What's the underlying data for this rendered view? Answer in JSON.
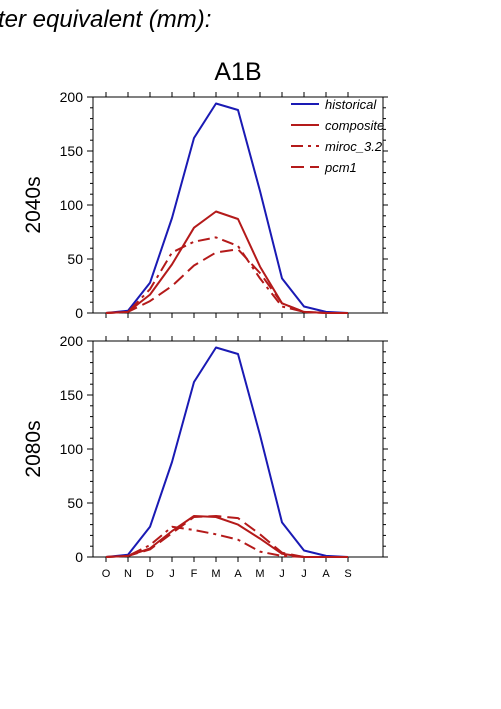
{
  "page": {
    "header": "ter equivalent (mm):",
    "scenario": "A1B"
  },
  "chart_data": [
    {
      "type": "line",
      "panel": "2040s",
      "ylabel": "2040s",
      "categories": [
        "O",
        "N",
        "D",
        "J",
        "F",
        "M",
        "A",
        "M",
        "J",
        "J",
        "A",
        "S"
      ],
      "ylim": [
        0,
        200
      ],
      "yticks": [
        0,
        50,
        100,
        150,
        200
      ],
      "legend": "top-right",
      "series": [
        {
          "name": "historical",
          "color": "#1a1ab4",
          "dash": "solid",
          "values": [
            0,
            2,
            28,
            88,
            162,
            194,
            188,
            113,
            32,
            6,
            1,
            0
          ]
        },
        {
          "name": "composite",
          "color": "#b41a1a",
          "dash": "solid",
          "values": [
            0,
            1,
            17,
            45,
            79,
            94,
            87,
            43,
            9,
            1,
            0,
            0
          ]
        },
        {
          "name": "miroc_3.2",
          "color": "#b41a1a",
          "dash": "dashdot",
          "values": [
            0,
            1,
            22,
            56,
            66,
            70,
            62,
            32,
            6,
            1,
            0,
            0
          ]
        },
        {
          "name": "pcm1",
          "color": "#b41a1a",
          "dash": "dash",
          "values": [
            0,
            1,
            11,
            25,
            44,
            56,
            59,
            37,
            9,
            1,
            0,
            0
          ]
        }
      ]
    },
    {
      "type": "line",
      "panel": "2080s",
      "ylabel": "2080s",
      "categories": [
        "O",
        "N",
        "D",
        "J",
        "F",
        "M",
        "A",
        "M",
        "J",
        "J",
        "A",
        "S"
      ],
      "ylim": [
        0,
        200
      ],
      "yticks": [
        0,
        50,
        100,
        150,
        200
      ],
      "series": [
        {
          "name": "historical",
          "color": "#1a1ab4",
          "dash": "solid",
          "values": [
            0,
            2,
            28,
            88,
            162,
            194,
            188,
            113,
            32,
            6,
            1,
            0
          ]
        },
        {
          "name": "composite",
          "color": "#b41a1a",
          "dash": "solid",
          "values": [
            0,
            1,
            8,
            24,
            38,
            37,
            30,
            17,
            3,
            0,
            0,
            0
          ]
        },
        {
          "name": "miroc_3.2",
          "color": "#b41a1a",
          "dash": "dashdot",
          "values": [
            0,
            1,
            11,
            28,
            25,
            21,
            16,
            5,
            1,
            0,
            0,
            0
          ]
        },
        {
          "name": "pcm1",
          "color": "#b41a1a",
          "dash": "dash",
          "values": [
            0,
            1,
            7,
            22,
            37,
            38,
            36,
            21,
            4,
            0,
            0,
            0
          ]
        }
      ]
    }
  ]
}
